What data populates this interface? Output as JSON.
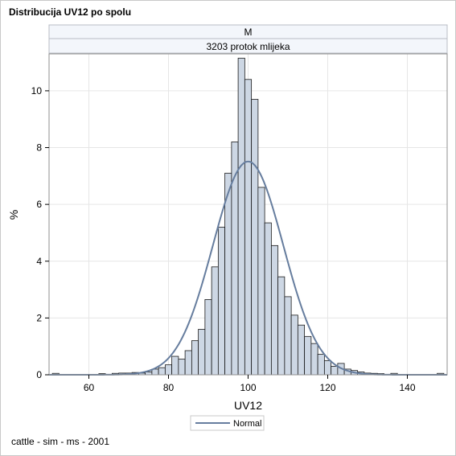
{
  "title": "Distribucija UV12 po spolu",
  "footnote": "cattle - sim - ms - 2001",
  "panel": {
    "row_header": "M",
    "column_header": "3203 protok mlijeka"
  },
  "colors": {
    "bar_fill": "#cdd7e4",
    "bar_stroke": "#1a1a1a",
    "normal_curve": "#667d9e",
    "grid": "#e6e6e6",
    "header_fill": "#f3f6fb"
  },
  "legend": {
    "items": [
      {
        "label": "Normal",
        "type": "line"
      }
    ]
  },
  "chart_data": {
    "type": "bar",
    "xlabel": "UV12",
    "ylabel": "%",
    "xlim": [
      50,
      150
    ],
    "ylim": [
      0,
      11.3
    ],
    "x_ticks": [
      60,
      80,
      100,
      120,
      140
    ],
    "y_ticks": [
      0,
      2,
      4,
      6,
      8,
      10
    ],
    "bin_width": 1.667,
    "grid": true,
    "legend_position": "bottom",
    "bins": {
      "x": [
        51.67,
        63.33,
        66.67,
        68.33,
        70.0,
        71.67,
        73.33,
        75.0,
        76.67,
        78.33,
        80.0,
        81.67,
        83.33,
        85.0,
        86.67,
        88.33,
        90.0,
        91.67,
        93.33,
        95.0,
        96.67,
        98.33,
        100.0,
        101.67,
        103.33,
        105.0,
        106.67,
        108.33,
        110.0,
        111.67,
        113.33,
        115.0,
        116.67,
        118.33,
        120.0,
        121.67,
        123.33,
        125.0,
        126.67,
        128.33,
        130.0,
        131.67,
        133.33,
        136.67,
        148.33
      ],
      "values": [
        0.05,
        0.04,
        0.05,
        0.06,
        0.06,
        0.08,
        0.06,
        0.1,
        0.2,
        0.25,
        0.35,
        0.65,
        0.55,
        0.85,
        1.2,
        1.6,
        2.65,
        3.8,
        5.2,
        7.1,
        8.2,
        11.15,
        10.4,
        9.7,
        6.6,
        5.35,
        4.55,
        3.45,
        2.75,
        2.1,
        1.75,
        1.35,
        1.1,
        0.72,
        0.5,
        0.3,
        0.4,
        0.2,
        0.15,
        0.1,
        0.06,
        0.05,
        0.04,
        0.05,
        0.05
      ]
    },
    "series": [
      {
        "name": "Normal",
        "type": "line",
        "mean": 100,
        "std": 8.85,
        "peak_percent": 7.51
      }
    ]
  }
}
